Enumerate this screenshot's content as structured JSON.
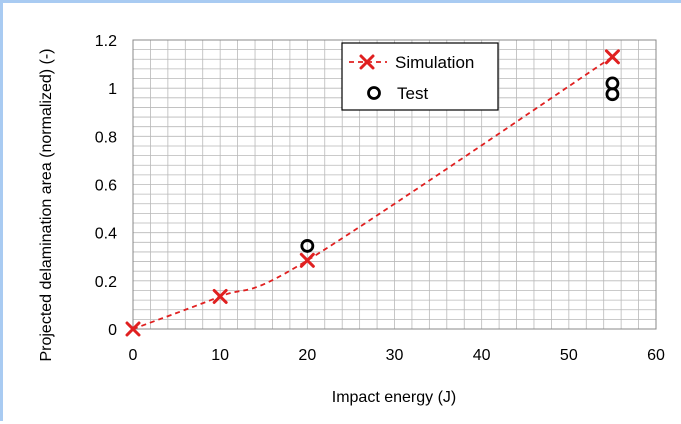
{
  "chart_data": {
    "type": "scatter",
    "title": "",
    "xlabel": "Impact energy (J)",
    "ylabel": "Projected delamination area (normalized) (-)",
    "xlim": [
      0,
      60
    ],
    "ylim": [
      0,
      1.2
    ],
    "x_ticks": [
      0,
      10,
      20,
      30,
      40,
      50,
      60
    ],
    "y_ticks": [
      0,
      0.2,
      0.4,
      0.6,
      0.8,
      1,
      1.2
    ],
    "x_tick_labels": [
      "0",
      "10",
      "20",
      "30",
      "40",
      "50",
      "60"
    ],
    "y_tick_labels": [
      "0",
      "0.2",
      "0.4",
      "0.6",
      "0.8",
      "1",
      "1.2"
    ],
    "grid": true,
    "legend_position": "top-center",
    "series": [
      {
        "name": "Simulation",
        "marker": "x",
        "line": "dashed",
        "color": "#e02020",
        "x": [
          0,
          10,
          20,
          55
        ],
        "y": [
          0,
          0.135,
          0.285,
          1.13
        ]
      },
      {
        "name": "Test",
        "marker": "circle-open",
        "line": "none",
        "color": "#000000",
        "x": [
          20,
          55,
          55
        ],
        "y": [
          0.345,
          1.02,
          0.975
        ]
      }
    ]
  }
}
